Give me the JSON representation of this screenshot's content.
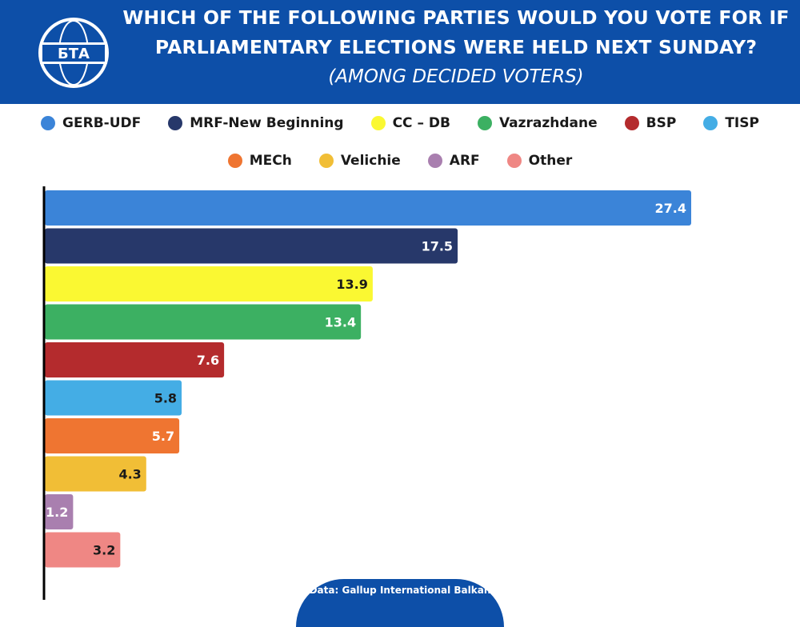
{
  "header": {
    "logo_text": "БТА",
    "title_line1": "WHICH OF THE FOLLOWING PARTIES WOULD YOU VOTE FOR IF",
    "title_line2": "PARLIAMENTARY ELECTIONS WERE HELD NEXT SUNDAY?",
    "subtitle": "(AMONG DECIDED VOTERS)"
  },
  "colors": {
    "header_bg": "#0d4fa8",
    "axis": "#000000"
  },
  "chart_data": {
    "type": "bar",
    "orientation": "horizontal",
    "title": "WHICH OF THE FOLLOWING PARTIES WOULD YOU VOTE FOR IF PARLIAMENTARY ELECTIONS WERE HELD NEXT SUNDAY?",
    "subtitle": "(AMONG DECIDED VOTERS)",
    "xlabel": "",
    "ylabel": "",
    "xlim": [
      0,
      30
    ],
    "grid": false,
    "legend_position": "top",
    "categories": [
      "GERB-UDF",
      "MRF-New Beginning",
      "CC – DB",
      "Vazrazhdane",
      "BSP",
      "TISP",
      "MECh",
      "Velichie",
      "ARF",
      "Other"
    ],
    "values": [
      27.4,
      17.5,
      13.9,
      13.4,
      7.6,
      5.8,
      5.7,
      4.3,
      1.2,
      3.2
    ],
    "value_labels": [
      "27.4",
      "17.5",
      "13.9",
      "13.4",
      "7.6",
      "5.8",
      "5.7",
      "4.3",
      "1.2",
      "3.2"
    ],
    "colors": [
      "#3b84d8",
      "#27386a",
      "#faf832",
      "#3cb062",
      "#b42b2d",
      "#44ade5",
      "#ef7531",
      "#f1be36",
      "#a97faf",
      "#ef8784"
    ],
    "label_colors": [
      "#ffffff",
      "#ffffff",
      "#1a1a1a",
      "#ffffff",
      "#ffffff",
      "#1a1a1a",
      "#ffffff",
      "#1a1a1a",
      "#ffffff",
      "#1a1a1a"
    ]
  },
  "legend": {
    "row1": [
      "GERB-UDF",
      "MRF-New Beginning",
      "CC – DB",
      "Vazrazhdane",
      "BSP",
      "TISP"
    ],
    "row2": [
      "MECh",
      "Velichie",
      "ARF",
      "Other"
    ]
  },
  "footer": {
    "source": "Data: Gallup International Balkan"
  }
}
